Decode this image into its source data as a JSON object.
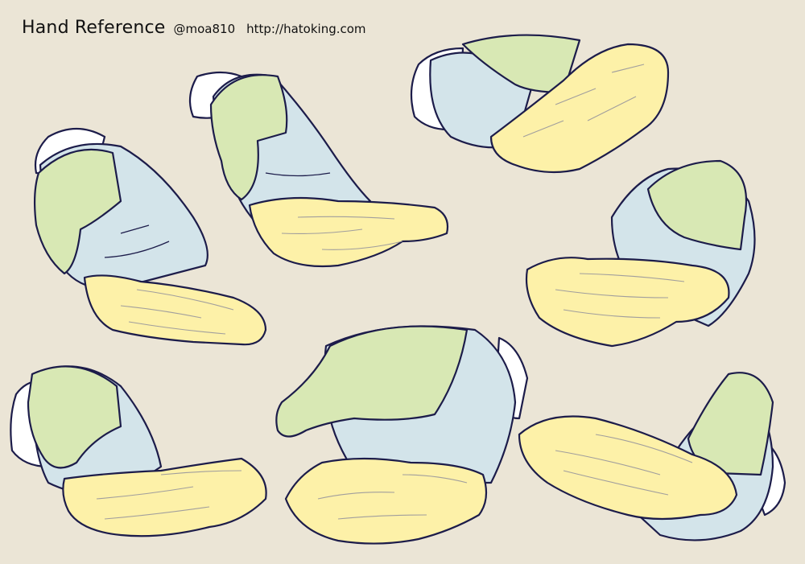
{
  "header": {
    "title": "Hand Reference",
    "handle": "@moa810",
    "url": "http://hatoking.com"
  },
  "palette": {
    "background": "#ebe5d6",
    "thumb_green": "#d8e8b4",
    "palm_blue": "#d3e4ea",
    "fingers_yellow": "#fdf1a8",
    "sleeve_white": "#ffffff",
    "outline": "#1c1c4a"
  }
}
